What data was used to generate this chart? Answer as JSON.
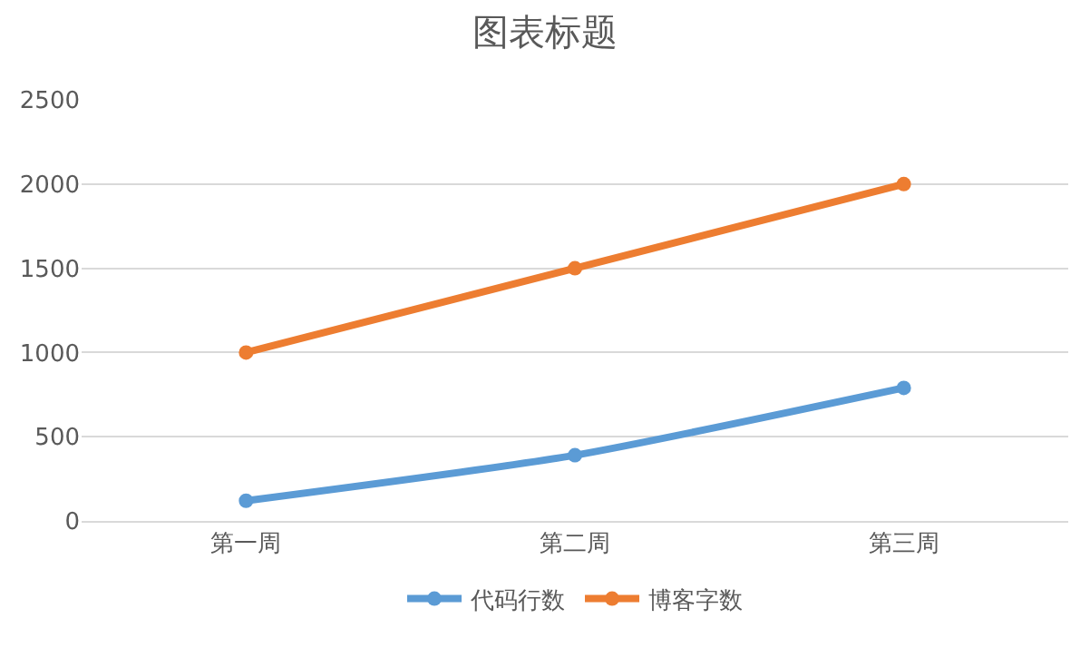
{
  "chart_data": {
    "type": "line",
    "title": "图表标题",
    "categories": [
      "第一周",
      "第二周",
      "第三周"
    ],
    "series": [
      {
        "name": "代码行数",
        "color": "#5b9bd5",
        "values": [
          120,
          390,
          790
        ]
      },
      {
        "name": "博客字数",
        "color": "#ed7d31",
        "values": [
          1000,
          1500,
          2000
        ]
      }
    ],
    "ylim": [
      0,
      2500
    ],
    "yticks": [
      0,
      500,
      1000,
      1500,
      2000,
      2500
    ],
    "grid": "y",
    "legend": "bottom",
    "marker": "circle",
    "line_style": "solid"
  }
}
